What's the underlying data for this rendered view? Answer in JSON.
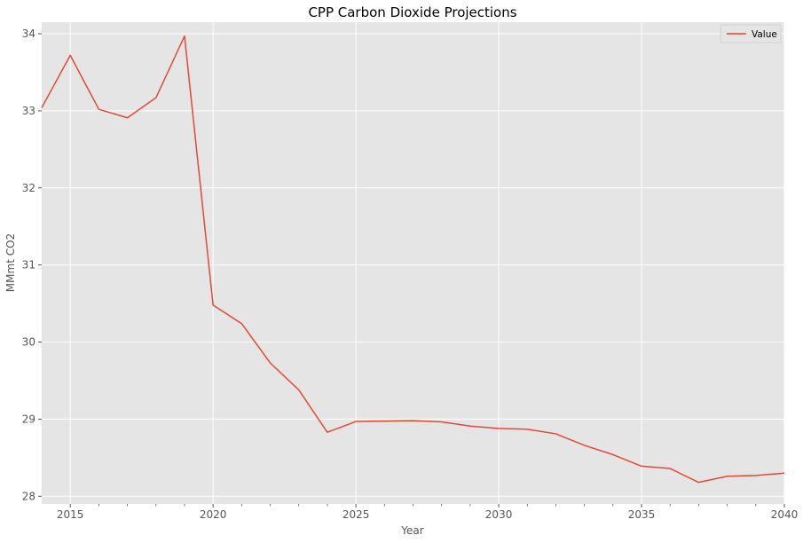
{
  "chart_data": {
    "type": "line",
    "title": "CPP Carbon Dioxide Projections",
    "xlabel": "Year",
    "ylabel": "MMmt CO2",
    "xlim": [
      2014,
      2040
    ],
    "ylim": [
      27.9,
      34.15
    ],
    "x_major_ticks": [
      2015,
      2020,
      2025,
      2030,
      2035,
      2040
    ],
    "x_minor_ticks": [
      2016,
      2017,
      2018,
      2019,
      2021,
      2022,
      2023,
      2024,
      2026,
      2027,
      2028,
      2029,
      2031,
      2032,
      2033,
      2034,
      2036,
      2037,
      2038,
      2039
    ],
    "y_ticks": [
      28,
      29,
      30,
      31,
      32,
      33,
      34
    ],
    "grid": true,
    "legend_position": "top-right",
    "colors": {
      "background": "#E5E5E5",
      "grid": "#FFFFFF",
      "series": "#E24A33"
    },
    "series": [
      {
        "name": "Value",
        "x": [
          2014,
          2015,
          2016,
          2017,
          2018,
          2019,
          2020,
          2021,
          2022,
          2023,
          2024,
          2025,
          2026,
          2027,
          2028,
          2029,
          2030,
          2031,
          2032,
          2033,
          2034,
          2035,
          2036,
          2037,
          2038,
          2039,
          2040
        ],
        "values": [
          33.04,
          33.72,
          33.02,
          32.91,
          33.17,
          33.97,
          30.48,
          30.24,
          29.73,
          29.38,
          28.83,
          28.97,
          28.975,
          28.98,
          28.965,
          28.91,
          28.88,
          28.87,
          28.81,
          28.66,
          28.54,
          28.39,
          28.36,
          28.18,
          28.26,
          28.27,
          28.3
        ]
      }
    ]
  }
}
